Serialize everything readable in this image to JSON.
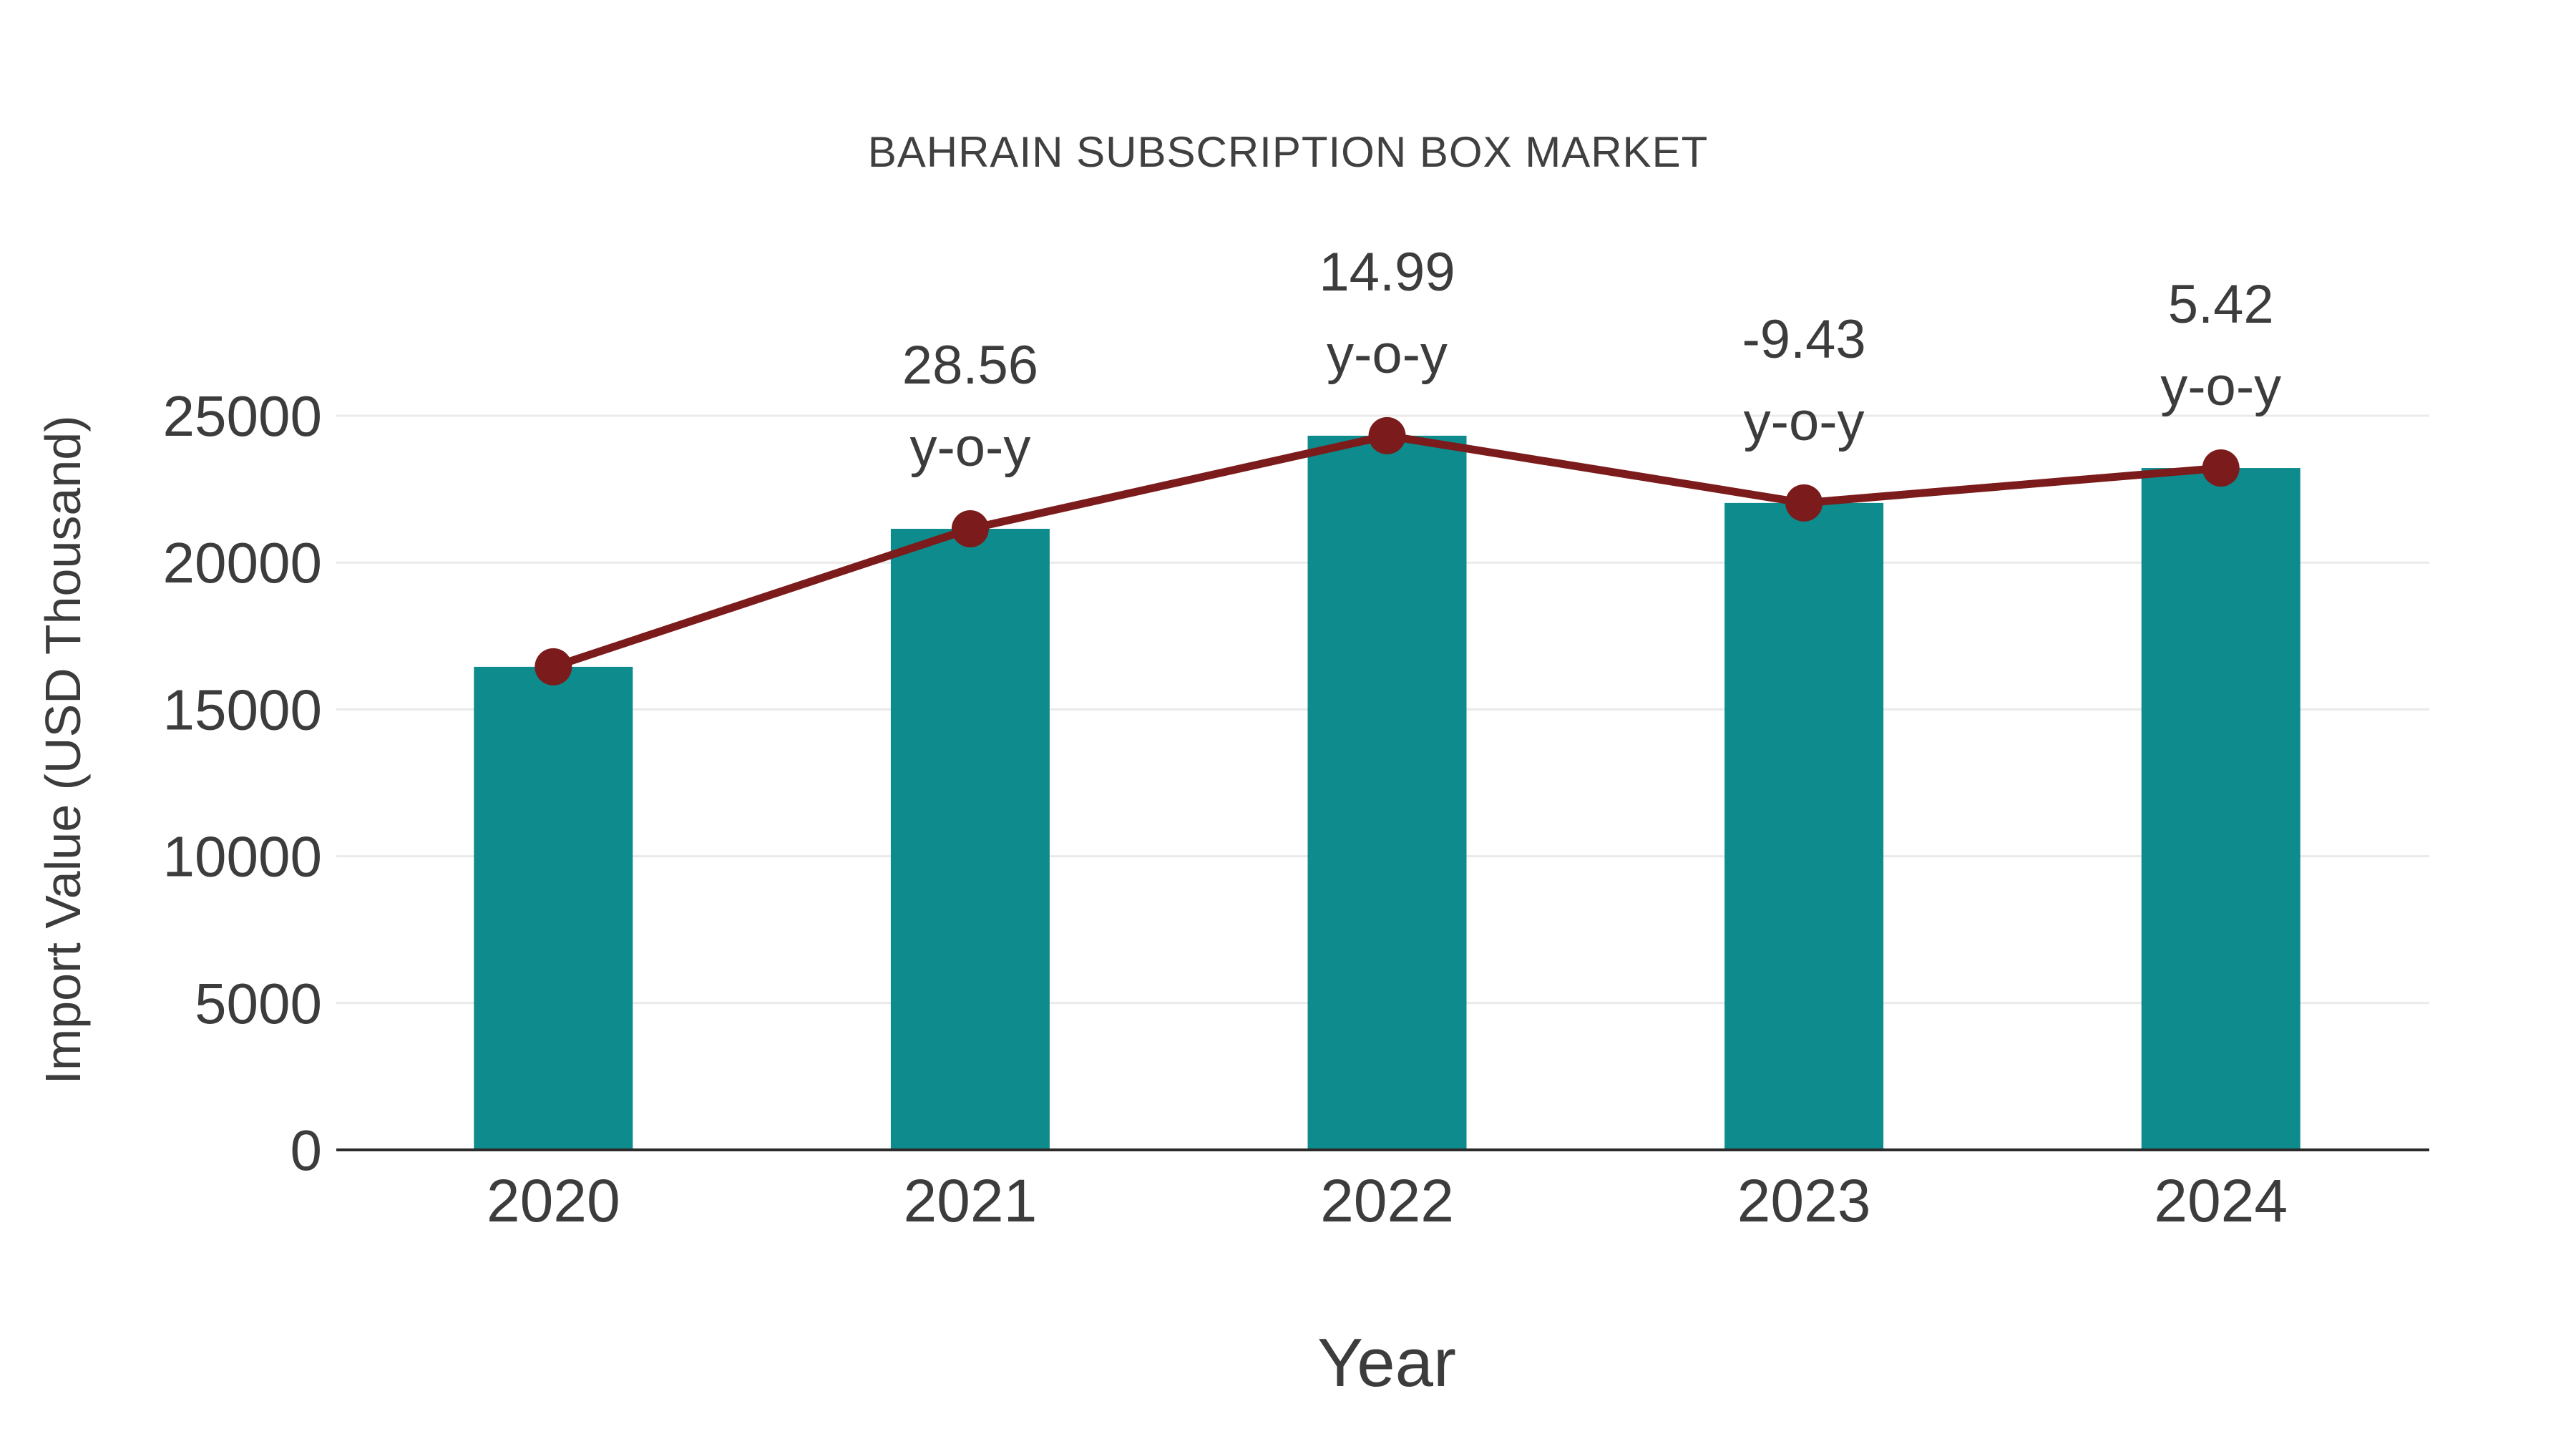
{
  "page": {
    "background": "#ffffff"
  },
  "chart_data": {
    "type": "bar",
    "title": "BAHRAIN SUBSCRIPTION BOX MARKET",
    "xlabel": "Year",
    "ylabel": "Import Value (USD Thousand)",
    "categories": [
      "2020",
      "2021",
      "2022",
      "2023",
      "2024"
    ],
    "series": [
      {
        "name": "Import Value (USD Thousand)",
        "type": "bar",
        "values": [
          16450,
          21150,
          24320,
          22030,
          23220
        ],
        "color": "#0e8b8c"
      },
      {
        "name": "y-o-y growth line",
        "type": "line",
        "values": [
          16450,
          21150,
          24320,
          22030,
          23220
        ],
        "color": "#7b1b1b"
      }
    ],
    "yoy_percent": [
      null,
      28.56,
      14.99,
      -9.43,
      5.42
    ],
    "annotations": [
      {
        "category": "2021",
        "line1": "28.56",
        "line2": "y-o-y"
      },
      {
        "category": "2022",
        "line1": "14.99",
        "line2": "y-o-y"
      },
      {
        "category": "2023",
        "line1": "-9.43",
        "line2": "y-o-y"
      },
      {
        "category": "2024",
        "line1": "5.42",
        "line2": "y-o-y"
      }
    ],
    "ylim": [
      0,
      25000
    ],
    "yticks": [
      0,
      5000,
      10000,
      15000,
      20000,
      25000
    ],
    "grid": true,
    "legend": "none"
  }
}
